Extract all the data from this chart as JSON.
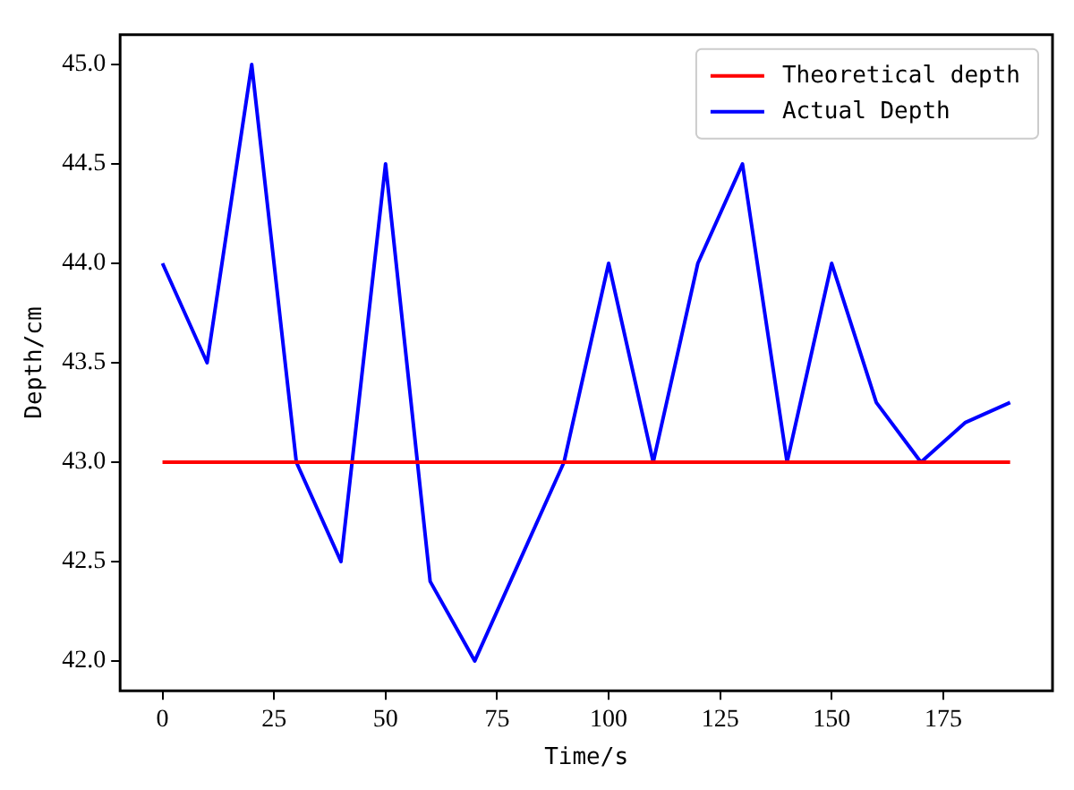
{
  "chart_data": {
    "type": "line",
    "xlabel": "Time/s",
    "ylabel": "Depth/cm",
    "x": [
      0,
      10,
      20,
      30,
      40,
      50,
      60,
      70,
      80,
      90,
      100,
      110,
      120,
      130,
      140,
      150,
      160,
      170,
      180,
      190
    ],
    "series": [
      {
        "name": "Theoretical depth",
        "color": "#ff0000",
        "values": [
          43,
          43,
          43,
          43,
          43,
          43,
          43,
          43,
          43,
          43,
          43,
          43,
          43,
          43,
          43,
          43,
          43,
          43,
          43,
          43
        ]
      },
      {
        "name": "Actual Depth",
        "color": "#0000ff",
        "values": [
          44,
          43.5,
          45,
          43,
          42.5,
          44.5,
          42.4,
          42,
          42.5,
          43,
          44,
          43,
          44,
          44.5,
          43,
          44,
          43.3,
          43,
          43.2,
          43.3
        ]
      }
    ],
    "xlim": [
      -9.5,
      199.5
    ],
    "xticks": [
      0,
      25,
      50,
      75,
      100,
      125,
      150,
      175
    ],
    "ylim": [
      41.85,
      45.15
    ],
    "yticks": [
      {
        "value": 42,
        "label": "42.0"
      },
      42.5,
      {
        "value": 43,
        "label": "43.0"
      },
      43.5,
      {
        "value": 44,
        "label": "44.0"
      },
      44.5,
      {
        "value": 45,
        "label": "45.0"
      }
    ],
    "grid": false,
    "legend": "top right",
    "marker": "none",
    "line_style": "solid"
  }
}
